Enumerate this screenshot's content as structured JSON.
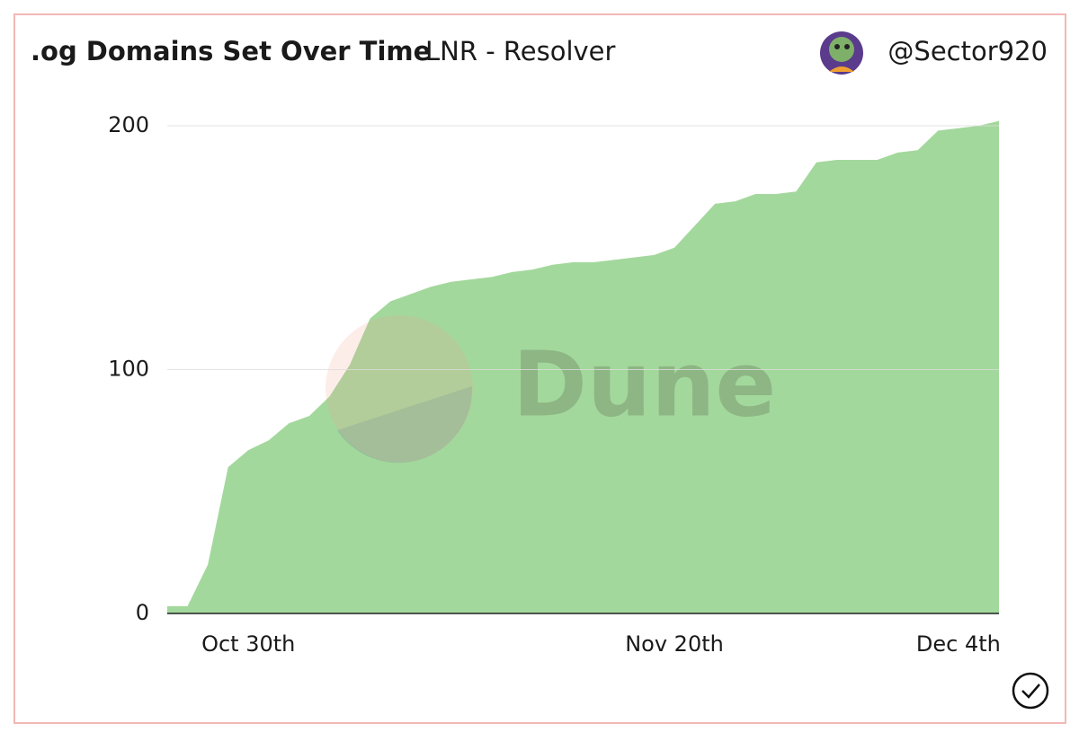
{
  "chart_data": {
    "type": "area",
    "title": ".og Domains Set Over Time",
    "subtitle": "LNR - Resolver",
    "author": "@Sector920",
    "watermark": "Dune",
    "categories": [
      null,
      null,
      null,
      null,
      "Oct 30th",
      null,
      null,
      null,
      null,
      null,
      null,
      null,
      null,
      null,
      null,
      null,
      null,
      null,
      null,
      null,
      null,
      null,
      null,
      null,
      null,
      "Nov 20th",
      null,
      null,
      null,
      null,
      null,
      null,
      null,
      null,
      null,
      null,
      null,
      null,
      null,
      "Dec 4th",
      null,
      null
    ],
    "series": [
      {
        "color": "#a3d89c",
        "values": [
          3,
          3,
          20,
          60,
          67,
          71,
          78,
          81,
          89,
          102,
          121,
          128,
          131,
          134,
          136,
          137,
          138,
          140,
          141,
          143,
          144,
          144,
          145,
          146,
          147,
          150,
          159,
          168,
          169,
          172,
          172,
          173,
          185,
          186,
          186,
          186,
          189,
          190,
          198,
          199,
          200,
          202
        ]
      }
    ],
    "ylim": [
      0,
      200
    ],
    "yticks": [
      0,
      100,
      200
    ],
    "grid": true
  }
}
